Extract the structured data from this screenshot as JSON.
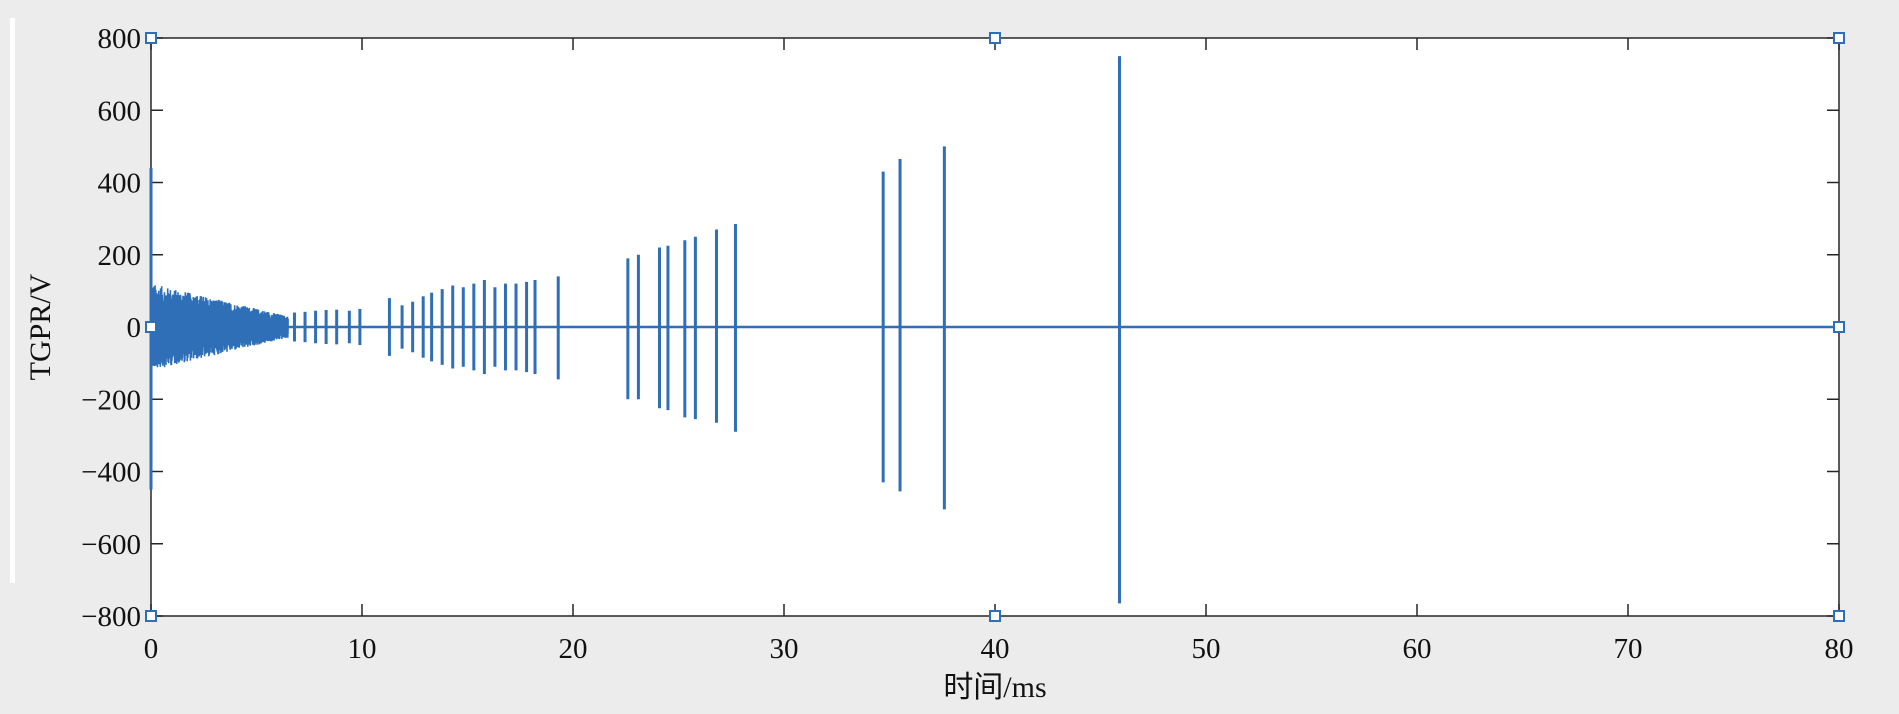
{
  "chart_data": {
    "type": "line",
    "title": "",
    "xlabel": "时间/ms",
    "ylabel": "TGPR/V",
    "xlim": [
      0,
      80
    ],
    "ylim": [
      -800,
      800
    ],
    "x_ticks": [
      0,
      10,
      20,
      30,
      40,
      50,
      60,
      70,
      80
    ],
    "y_ticks": [
      800,
      600,
      400,
      200,
      0,
      -200,
      -400,
      -600,
      -800
    ],
    "y_tick_labels": [
      "800",
      "600",
      "400",
      "200",
      "0",
      "−200",
      "−400",
      "−600",
      "−800"
    ],
    "grid": false,
    "legend": "none",
    "line_color": "#2e6fb7",
    "series": [
      {
        "dense_region": {
          "x_range": [
            0,
            6.5
          ],
          "amplitude_start": 120,
          "amplitude_end": 30
        },
        "pulses": [
          {
            "x": 0.0,
            "max": 440,
            "min": -450
          },
          {
            "x": 6.8,
            "max": 40,
            "min": -40
          },
          {
            "x": 7.3,
            "max": 42,
            "min": -42
          },
          {
            "x": 7.8,
            "max": 45,
            "min": -45
          },
          {
            "x": 8.3,
            "max": 47,
            "min": -47
          },
          {
            "x": 8.8,
            "max": 48,
            "min": -48
          },
          {
            "x": 9.4,
            "max": 45,
            "min": -45
          },
          {
            "x": 9.9,
            "max": 50,
            "min": -50
          },
          {
            "x": 11.3,
            "max": 80,
            "min": -80
          },
          {
            "x": 11.9,
            "max": 60,
            "min": -60
          },
          {
            "x": 12.4,
            "max": 70,
            "min": -70
          },
          {
            "x": 12.9,
            "max": 85,
            "min": -85
          },
          {
            "x": 13.3,
            "max": 95,
            "min": -95
          },
          {
            "x": 13.8,
            "max": 105,
            "min": -105
          },
          {
            "x": 14.3,
            "max": 115,
            "min": -115
          },
          {
            "x": 14.8,
            "max": 110,
            "min": -110
          },
          {
            "x": 15.3,
            "max": 120,
            "min": -120
          },
          {
            "x": 15.8,
            "max": 130,
            "min": -130
          },
          {
            "x": 16.3,
            "max": 110,
            "min": -110
          },
          {
            "x": 16.8,
            "max": 120,
            "min": -120
          },
          {
            "x": 17.3,
            "max": 120,
            "min": -120
          },
          {
            "x": 17.8,
            "max": 125,
            "min": -125
          },
          {
            "x": 18.2,
            "max": 130,
            "min": -130
          },
          {
            "x": 19.3,
            "max": 140,
            "min": -145
          },
          {
            "x": 22.6,
            "max": 190,
            "min": -200
          },
          {
            "x": 23.1,
            "max": 200,
            "min": -200
          },
          {
            "x": 24.1,
            "max": 220,
            "min": -225
          },
          {
            "x": 24.5,
            "max": 225,
            "min": -230
          },
          {
            "x": 25.3,
            "max": 240,
            "min": -250
          },
          {
            "x": 25.8,
            "max": 250,
            "min": -255
          },
          {
            "x": 26.8,
            "max": 270,
            "min": -265
          },
          {
            "x": 27.7,
            "max": 285,
            "min": -290
          },
          {
            "x": 34.7,
            "max": 430,
            "min": -430
          },
          {
            "x": 35.5,
            "max": 465,
            "min": -455
          },
          {
            "x": 37.6,
            "max": 500,
            "min": -505
          },
          {
            "x": 45.9,
            "max": 750,
            "min": -765
          }
        ]
      }
    ]
  }
}
